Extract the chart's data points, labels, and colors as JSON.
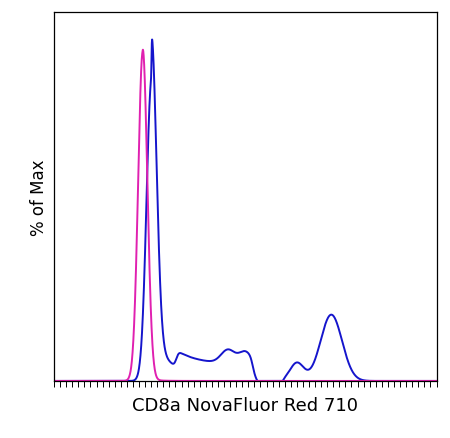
{
  "title": "",
  "xlabel": "CD8a NovaFluor Red 710",
  "ylabel": "% of Max",
  "xlim": [
    0,
    1
  ],
  "ylim": [
    0,
    1.08
  ],
  "background_color": "#ffffff",
  "line_blue_color": "#1515cc",
  "line_pink_color": "#e020b0",
  "linewidth": 1.4,
  "xlabel_fontsize": 13,
  "ylabel_fontsize": 12
}
